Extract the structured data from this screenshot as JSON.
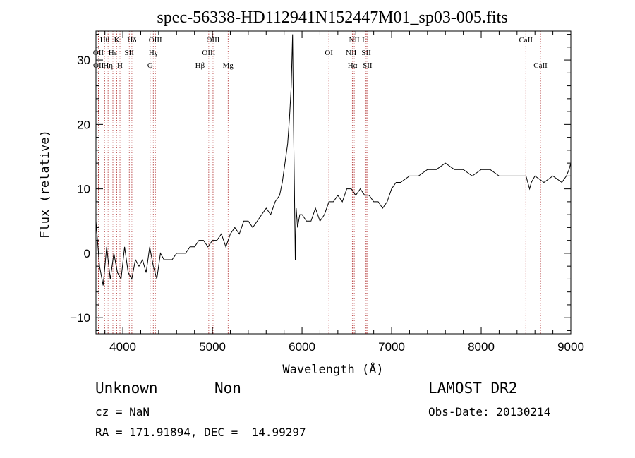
{
  "chart_data": {
    "type": "line",
    "title": "spec-56338-HD112941N152447M01_sp03-005.fits",
    "xlabel": "Wavelength (Å)",
    "ylabel": "Flux (relative)",
    "xlim": [
      3700,
      9000
    ],
    "ylim": [
      -12.5,
      34.5
    ],
    "xticks": [
      4000,
      5000,
      6000,
      7000,
      8000,
      9000
    ],
    "yticks": [
      -10,
      0,
      10,
      20,
      30
    ],
    "grid": false,
    "series": [
      {
        "color": "#000000",
        "x": [
          3700,
          3740,
          3780,
          3820,
          3860,
          3900,
          3940,
          3980,
          4020,
          4060,
          4100,
          4140,
          4180,
          4220,
          4260,
          4300,
          4340,
          4380,
          4420,
          4460,
          4500,
          4550,
          4600,
          4650,
          4700,
          4750,
          4800,
          4850,
          4900,
          4950,
          5000,
          5050,
          5100,
          5150,
          5200,
          5250,
          5300,
          5350,
          5400,
          5450,
          5500,
          5550,
          5600,
          5650,
          5700,
          5750,
          5780,
          5810,
          5840,
          5860,
          5880,
          5895,
          5905,
          5915,
          5925,
          5935,
          5950,
          5975,
          6000,
          6050,
          6100,
          6150,
          6200,
          6250,
          6300,
          6350,
          6400,
          6450,
          6500,
          6550,
          6600,
          6650,
          6700,
          6750,
          6800,
          6850,
          6900,
          6950,
          7000,
          7050,
          7100,
          7200,
          7300,
          7400,
          7500,
          7600,
          7700,
          7800,
          7900,
          8000,
          8100,
          8200,
          8300,
          8400,
          8500,
          8520,
          8540,
          8560,
          8600,
          8700,
          8800,
          8900,
          8950,
          8980,
          9000
        ],
        "y": [
          5,
          -2,
          -5,
          1,
          -4,
          0,
          -3,
          -4,
          1,
          -3,
          -4,
          -1,
          -2,
          -1,
          -3,
          1,
          -2,
          -4,
          0,
          -1,
          -1,
          -1,
          0,
          0,
          0,
          1,
          1,
          2,
          2,
          1,
          2,
          2,
          3,
          1,
          3,
          4,
          3,
          5,
          5,
          4,
          5,
          6,
          7,
          6,
          8,
          9,
          11,
          14,
          17,
          21,
          26,
          34,
          20,
          10,
          -1,
          7,
          4,
          6,
          6,
          5,
          5,
          7,
          5,
          6,
          8,
          8,
          9,
          8,
          10,
          10,
          9,
          10,
          9,
          9,
          8,
          8,
          7,
          8,
          10,
          11,
          11,
          12,
          12,
          13,
          13,
          14,
          13,
          13,
          12,
          13,
          13,
          12,
          12,
          12,
          12,
          11,
          10,
          11,
          12,
          11,
          12,
          11,
          12,
          13,
          14
        ]
      }
    ],
    "lines": [
      {
        "label": "Hθ",
        "x": 3797,
        "row": 0
      },
      {
        "label": "K",
        "x": 3933,
        "row": 0
      },
      {
        "label": "Hδ",
        "x": 4101,
        "row": 0
      },
      {
        "label": "OIII",
        "x": 4363,
        "row": 0
      },
      {
        "label": "OIII",
        "x": 5007,
        "row": 0
      },
      {
        "label": "NII",
        "x": 6583,
        "row": 0
      },
      {
        "label": "Li",
        "x": 6708,
        "row": 0
      },
      {
        "label": "CaII",
        "x": 8498,
        "row": 0
      },
      {
        "label": "OII",
        "x": 3727,
        "row": 1
      },
      {
        "label": "Hε",
        "x": 3889,
        "row": 1
      },
      {
        "label": "SII",
        "x": 4072,
        "row": 1
      },
      {
        "label": "Hγ",
        "x": 4340,
        "row": 1
      },
      {
        "label": "OIII",
        "x": 4959,
        "row": 1
      },
      {
        "label": "OI",
        "x": 6300,
        "row": 1
      },
      {
        "label": "NII",
        "x": 6548,
        "row": 1
      },
      {
        "label": "SII",
        "x": 6717,
        "row": 1
      },
      {
        "label": "OII",
        "x": 3729,
        "row": 2
      },
      {
        "label": "Hη",
        "x": 3835,
        "row": 2
      },
      {
        "label": "H",
        "x": 3968,
        "row": 2
      },
      {
        "label": "G",
        "x": 4305,
        "row": 2
      },
      {
        "label": "Hβ",
        "x": 4861,
        "row": 2
      },
      {
        "label": "Mg",
        "x": 5175,
        "row": 2
      },
      {
        "label": "Hα",
        "x": 6563,
        "row": 2
      },
      {
        "label": "SII",
        "x": 6731,
        "row": 2
      },
      {
        "label": "CaII",
        "x": 8662,
        "row": 2
      }
    ]
  },
  "info": {
    "class": "Unknown",
    "subclass": "Non",
    "cz": "cz = NaN",
    "radec": "RA = 171.91894, DEC =  14.99297",
    "survey": "LAMOST DR2",
    "obsdate": "Obs-Date: 20130214"
  }
}
